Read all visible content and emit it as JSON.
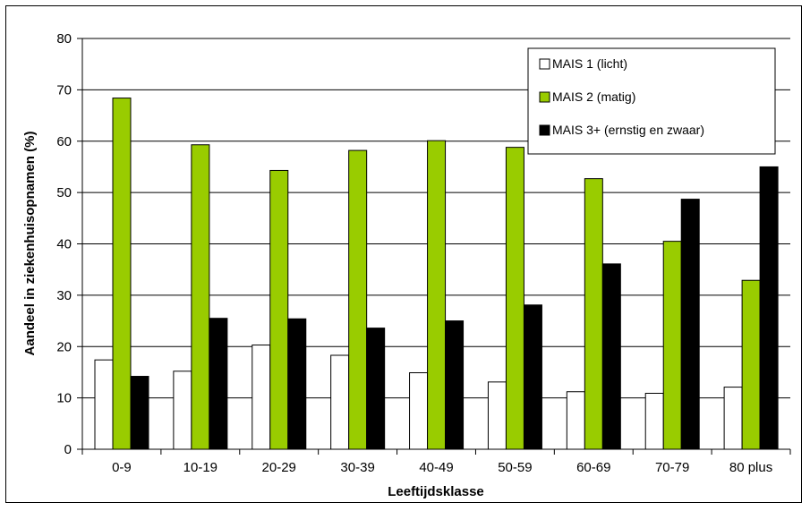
{
  "chart_data": {
    "type": "bar",
    "title": "",
    "xlabel": "Leeftijdsklasse",
    "ylabel": "Aandeel in ziekenhuisopnamen (%)",
    "ylim": [
      0,
      80
    ],
    "yticks": [
      0,
      10,
      20,
      30,
      40,
      50,
      60,
      70,
      80
    ],
    "grid": true,
    "legend_position": "top-right",
    "categories": [
      "0-9",
      "10-19",
      "20-29",
      "30-39",
      "40-49",
      "50-59",
      "60-69",
      "70-79",
      "80 plus"
    ],
    "series": [
      {
        "name": "MAIS 1 (licht)",
        "color": "#ffffff",
        "values": [
          17.4,
          15.2,
          20.3,
          18.3,
          14.9,
          13.1,
          11.2,
          10.9,
          12.1
        ]
      },
      {
        "name": "MAIS 2 (matig)",
        "color": "#99cc00",
        "values": [
          68.4,
          59.3,
          54.3,
          58.2,
          60.1,
          58.8,
          52.7,
          40.5,
          32.9
        ]
      },
      {
        "name": "MAIS 3+ (ernstig en zwaar)",
        "color": "#000000",
        "values": [
          14.2,
          25.5,
          25.4,
          23.6,
          25.0,
          28.1,
          36.1,
          48.7,
          55.0
        ]
      }
    ]
  }
}
